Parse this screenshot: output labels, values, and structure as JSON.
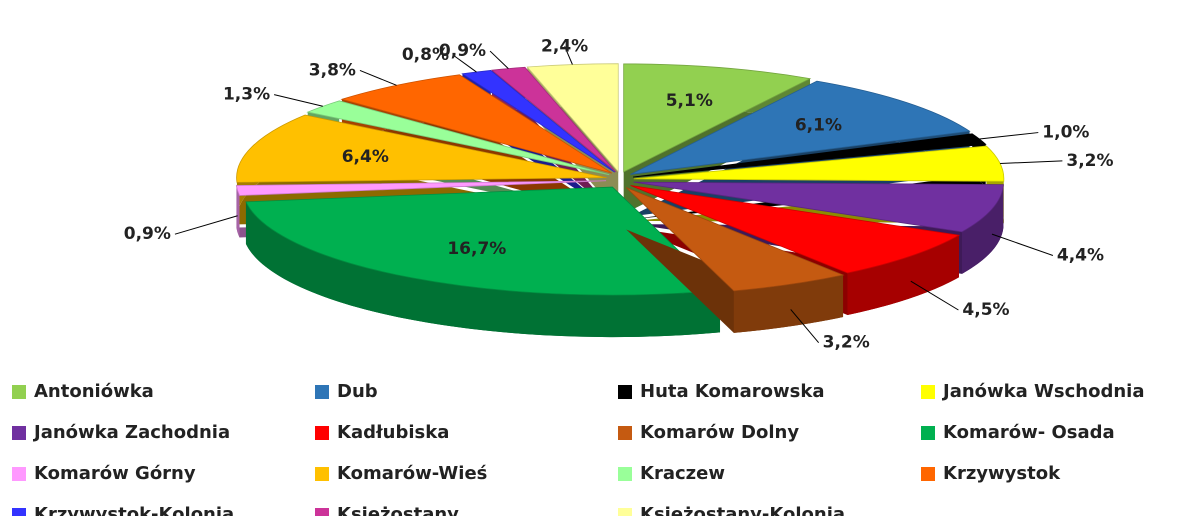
{
  "chart_data": {
    "type": "pie",
    "categories": [
      "Antoniówka",
      "Dub",
      "Huta Komarowska",
      "Janówka Wschodnia",
      "Janówka Zachodnia",
      "Kadłubiska",
      "Komarów Dolny",
      "Komarów- Osada",
      "Komarów Górny",
      "Komarów-Wieś",
      "Kraczew",
      "Krzywystok",
      "Krzywystok-Kolonia",
      "Księżostany",
      "Księżostany-Kolonia"
    ],
    "values": [
      5.1,
      6.1,
      1.0,
      3.2,
      4.4,
      4.5,
      3.2,
      16.7,
      0.9,
      6.4,
      1.3,
      3.8,
      0.8,
      0.9,
      2.4
    ],
    "value_labels": [
      "5,1%",
      "6,1%",
      "1,0%",
      "3,2%",
      "4,4%",
      "4,5%",
      "3,2%",
      "16,7%",
      "0,9%",
      "6,4%",
      "1,3%",
      "3,8%",
      "0,8%",
      "0,9%",
      "2,4%"
    ],
    "colors": [
      "#92d050",
      "#2e75b6",
      "#000000",
      "#ffff00",
      "#7030a0",
      "#ff0000",
      "#c55a11",
      "#00b050",
      "#ff99ff",
      "#ffc000",
      "#99ff99",
      "#ff6600",
      "#3333ff",
      "#cc3399",
      "#ffff99"
    ],
    "legend": "bottom"
  }
}
